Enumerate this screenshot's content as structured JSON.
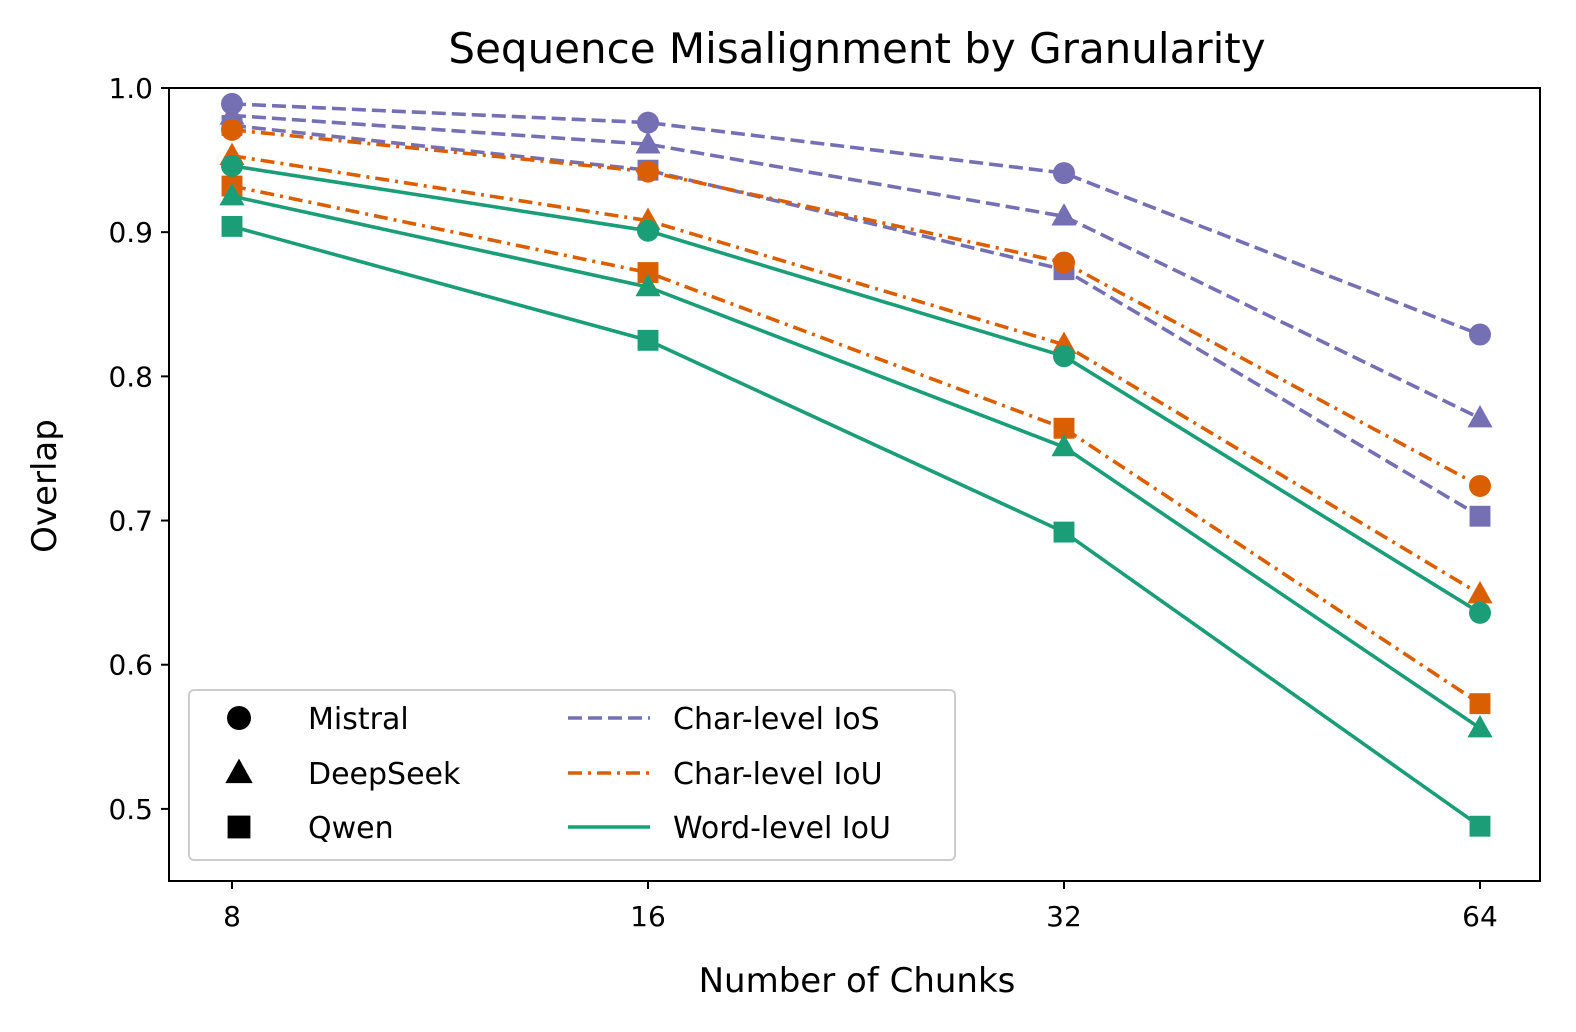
{
  "chart_data": {
    "type": "line",
    "title": "Sequence Misalignment by Granularity",
    "xlabel": "Number of Chunks",
    "ylabel": "Overlap",
    "categories": [
      "8",
      "16",
      "32",
      "64"
    ],
    "ylim": [
      0.45,
      1.0
    ],
    "yticks": [
      "0.5",
      "0.6",
      "0.7",
      "0.8",
      "0.9",
      "1.0"
    ],
    "grid": false,
    "legend_placement": "lower-left",
    "legend_models": [
      {
        "name": "Mistral",
        "marker": "circle"
      },
      {
        "name": "DeepSeek",
        "marker": "triangle"
      },
      {
        "name": "Qwen",
        "marker": "square"
      }
    ],
    "legend_metrics": [
      {
        "name": "Char-level IoS",
        "color": "#7570b3",
        "dash": "dashed"
      },
      {
        "name": "Char-level IoU",
        "color": "#d95f02",
        "dash": "dashdot"
      },
      {
        "name": "Word-level IoU",
        "color": "#1b9e77",
        "dash": "solid"
      }
    ],
    "series": [
      {
        "metric": "Char-level IoS",
        "model": "Mistral",
        "color": "#7570b3",
        "dash": "dashed",
        "marker": "circle",
        "values": [
          0.989,
          0.976,
          0.941,
          0.829
        ]
      },
      {
        "metric": "Char-level IoS",
        "model": "DeepSeek",
        "color": "#7570b3",
        "dash": "dashed",
        "marker": "triangle",
        "values": [
          0.981,
          0.961,
          0.911,
          0.771
        ]
      },
      {
        "metric": "Char-level IoS",
        "model": "Qwen",
        "color": "#7570b3",
        "dash": "dashed",
        "marker": "square",
        "values": [
          0.974,
          0.943,
          0.874,
          0.703
        ]
      },
      {
        "metric": "Char-level IoU",
        "model": "Mistral",
        "color": "#d95f02",
        "dash": "dashdot",
        "marker": "circle",
        "values": [
          0.971,
          0.942,
          0.879,
          0.724
        ]
      },
      {
        "metric": "Char-level IoU",
        "model": "DeepSeek",
        "color": "#d95f02",
        "dash": "dashdot",
        "marker": "triangle",
        "values": [
          0.953,
          0.908,
          0.822,
          0.649
        ]
      },
      {
        "metric": "Char-level IoU",
        "model": "Qwen",
        "color": "#d95f02",
        "dash": "dashdot",
        "marker": "square",
        "values": [
          0.932,
          0.872,
          0.764,
          0.573
        ]
      },
      {
        "metric": "Word-level IoU",
        "model": "Mistral",
        "color": "#1b9e77",
        "dash": "solid",
        "marker": "circle",
        "values": [
          0.946,
          0.901,
          0.814,
          0.636
        ]
      },
      {
        "metric": "Word-level IoU",
        "model": "DeepSeek",
        "color": "#1b9e77",
        "dash": "solid",
        "marker": "triangle",
        "values": [
          0.925,
          0.862,
          0.751,
          0.556
        ]
      },
      {
        "metric": "Word-level IoU",
        "model": "Qwen",
        "color": "#1b9e77",
        "dash": "solid",
        "marker": "square",
        "values": [
          0.904,
          0.825,
          0.692,
          0.488
        ]
      }
    ]
  }
}
